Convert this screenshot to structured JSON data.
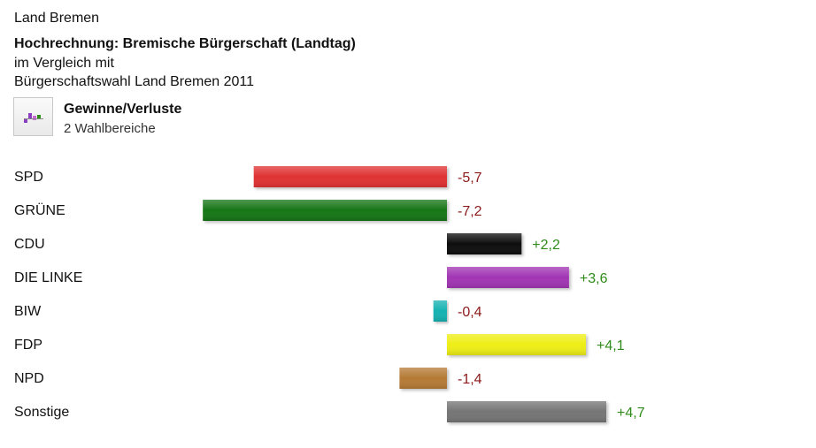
{
  "header": {
    "region": "Land Bremen",
    "title": "Hochrechnung: Bremische Bürgerschaft (Landtag)",
    "subtitle_line1": "im Vergleich mit",
    "subtitle_line2": "Bürgerschaftswahl Land Bremen 2011"
  },
  "legend": {
    "icon": "gain-loss-chart-icon",
    "title": "Gewinne/Verluste",
    "subtitle": "2 Wahlbereiche"
  },
  "colors": {
    "positive_text": "#2e8b1a",
    "negative_text": "#8b1a1a"
  },
  "chart_data": {
    "type": "bar",
    "orientation": "horizontal",
    "categories": [
      "SPD",
      "GRÜNE",
      "CDU",
      "DIE LINKE",
      "BIW",
      "FDP",
      "NPD",
      "Sonstige"
    ],
    "values": [
      -5.7,
      -7.2,
      2.2,
      3.6,
      -0.4,
      4.1,
      -1.4,
      4.7
    ],
    "value_labels": [
      "-5,7",
      "-7,2",
      "+2,2",
      "+3,6",
      "-0,4",
      "+4,1",
      "-1,4",
      "+4,7"
    ],
    "colors": [
      "#e03030",
      "#127612",
      "#111111",
      "#a235b4",
      "#18b2b2",
      "#eeee18",
      "#b57a36",
      "#747474"
    ]
  }
}
